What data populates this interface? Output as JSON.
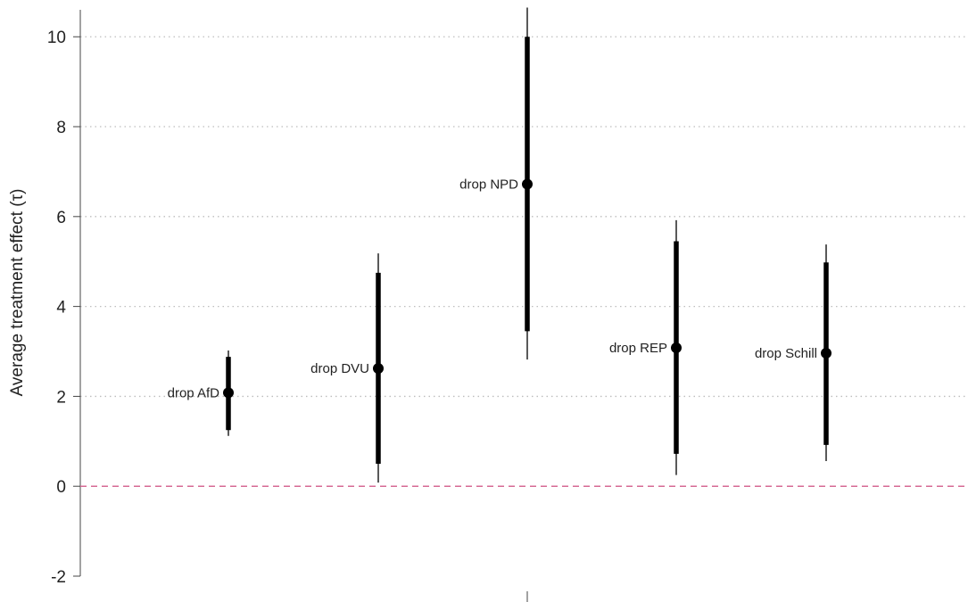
{
  "chart_data": {
    "type": "scatter",
    "ylabel": "Average treatment effect (τ)",
    "ylim": [
      -2,
      10.6
    ],
    "yticks": [
      -2,
      0,
      2,
      4,
      6,
      8,
      10
    ],
    "grid": true,
    "reference_line": {
      "y": 0,
      "style": "dashed",
      "color": "#d66a94"
    },
    "points": [
      {
        "label": "drop AfD",
        "estimate": 2.08,
        "ci_inner": [
          1.25,
          2.88
        ],
        "ci_outer": [
          1.12,
          3.02
        ]
      },
      {
        "label": "drop DVU",
        "estimate": 2.62,
        "ci_inner": [
          0.5,
          4.75
        ],
        "ci_outer": [
          0.08,
          5.18
        ]
      },
      {
        "label": "drop NPD",
        "estimate": 6.72,
        "ci_inner": [
          3.45,
          10.0
        ],
        "ci_outer": [
          2.82,
          10.65
        ]
      },
      {
        "label": "drop REP",
        "estimate": 3.08,
        "ci_inner": [
          0.72,
          5.45
        ],
        "ci_outer": [
          0.25,
          5.92
        ]
      },
      {
        "label": "drop Schill",
        "estimate": 2.96,
        "ci_inner": [
          0.92,
          4.98
        ],
        "ci_outer": [
          0.56,
          5.38
        ]
      }
    ],
    "colors": {
      "marks": "#000000",
      "grid": "#bdbdbd",
      "axis": "#444444"
    }
  }
}
